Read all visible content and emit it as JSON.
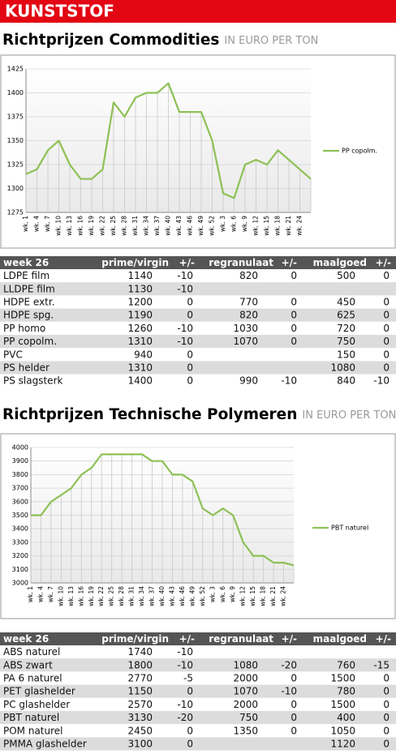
{
  "section": "KUNSTSTOF",
  "chart_data": [
    {
      "type": "line",
      "title": "Richtprijzen Commodities",
      "subtitle": "IN EURO PER TON",
      "categories": [
        "wk. 1",
        "wk. 4",
        "wk. 7",
        "wk. 10",
        "wk. 13",
        "wk. 16",
        "wk. 19",
        "wk. 22",
        "wk. 25",
        "wk. 28",
        "wk. 31",
        "wk. 34",
        "wk. 37",
        "wk. 40",
        "wk. 43",
        "wk. 46",
        "wk. 49",
        "wk. 52",
        "wk. 3",
        "wk. 6",
        "wk. 9",
        "wk. 12",
        "wk. 15",
        "wk. 18",
        "wk. 21",
        "wk. 24",
        null
      ],
      "series": [
        {
          "name": "PP copolm.",
          "color": "#8dc155",
          "values": [
            1315,
            1320,
            1340,
            1350,
            1325,
            1310,
            1310,
            1320,
            1390,
            1375,
            1395,
            1400,
            1400,
            1410,
            1380,
            1380,
            1380,
            1350,
            1295,
            1290,
            1325,
            1330,
            1325,
            1340,
            1330,
            1320,
            1310
          ]
        }
      ],
      "ylim": [
        1275,
        1425
      ],
      "yticks": [
        1275,
        1300,
        1325,
        1350,
        1375,
        1400,
        1425
      ],
      "grid": true,
      "legend": "right"
    },
    {
      "type": "line",
      "title": "Richtprijzen Technische Polymeren",
      "subtitle": "IN EURO PER TON",
      "categories": [
        "wk. 1",
        "wk. 4",
        "wk. 7",
        "wk. 10",
        "wk. 13",
        "wk. 16",
        "wk. 19",
        "wk. 22",
        "wk. 25",
        "wk. 28",
        "wk. 31",
        "wk. 34",
        "wk. 37",
        "wk. 40",
        "wk. 43",
        "wk. 46",
        "wk. 49",
        "wk. 52",
        "wk. 3",
        "wk. 6",
        "wk. 9",
        "wk. 12",
        "wk. 15",
        "wk. 18",
        "wk. 21",
        "wk. 24",
        null
      ],
      "series": [
        {
          "name": "PBT naturel",
          "color": "#8dc155",
          "values": [
            3500,
            3500,
            3600,
            3650,
            3700,
            3800,
            3850,
            3950,
            3950,
            3950,
            3950,
            3950,
            3900,
            3900,
            3800,
            3800,
            3750,
            3550,
            3500,
            3550,
            3500,
            3300,
            3200,
            3200,
            3150,
            3150,
            3130
          ]
        }
      ],
      "ylim": [
        3000,
        4000
      ],
      "yticks": [
        3000,
        3100,
        3200,
        3300,
        3400,
        3500,
        3600,
        3700,
        3800,
        3900,
        4000
      ],
      "grid": true,
      "legend": "right"
    }
  ],
  "tables": [
    {
      "columns": [
        "week 26",
        "prime/virgin",
        "+/-",
        "regranulaat",
        "+/-",
        "maalgoed",
        "+/-"
      ],
      "rows": [
        [
          "LDPE film",
          "1140",
          "-10",
          "820",
          "0",
          "500",
          "0"
        ],
        [
          "LLDPE film",
          "1130",
          "-10",
          null,
          null,
          null,
          null
        ],
        [
          "HDPE extr.",
          "1200",
          "0",
          "770",
          "0",
          "450",
          "0"
        ],
        [
          "HDPE spg.",
          "1190",
          "0",
          "820",
          "0",
          "625",
          "0"
        ],
        [
          "PP homo",
          "1260",
          "-10",
          "1030",
          "0",
          "720",
          "0"
        ],
        [
          "PP copolm.",
          "1310",
          "-10",
          "1070",
          "0",
          "750",
          "0"
        ],
        [
          "PVC",
          "940",
          "0",
          null,
          null,
          "150",
          "0"
        ],
        [
          "PS helder",
          "1310",
          "0",
          null,
          null,
          "1080",
          "0"
        ],
        [
          "PS slagsterk",
          "1400",
          "0",
          "990",
          "-10",
          "840",
          "-10"
        ]
      ]
    },
    {
      "columns": [
        "week 26",
        "prime/virgin",
        "+/-",
        "regranulaat",
        "+/-",
        "maalgoed",
        "+/-"
      ],
      "rows": [
        [
          "ABS naturel",
          "1740",
          "-10",
          null,
          null,
          null,
          null
        ],
        [
          "ABS zwart",
          "1800",
          "-10",
          "1080",
          "-20",
          "760",
          "-15"
        ],
        [
          "PA 6 naturel",
          "2770",
          "-5",
          "2000",
          "0",
          "1500",
          "0"
        ],
        [
          "PET glashelder",
          "1150",
          "0",
          "1070",
          "-10",
          "780",
          "0"
        ],
        [
          "PC glashelder",
          "2570",
          "-10",
          "2000",
          "0",
          "1500",
          "0"
        ],
        [
          "PBT naturel",
          "3130",
          "-20",
          "750",
          "0",
          "400",
          "0"
        ],
        [
          "POM naturel",
          "2450",
          "0",
          "1350",
          "0",
          "1050",
          "0"
        ],
        [
          "PMMA glashelder",
          "3100",
          "0",
          null,
          null,
          "1120",
          "0"
        ]
      ]
    }
  ]
}
